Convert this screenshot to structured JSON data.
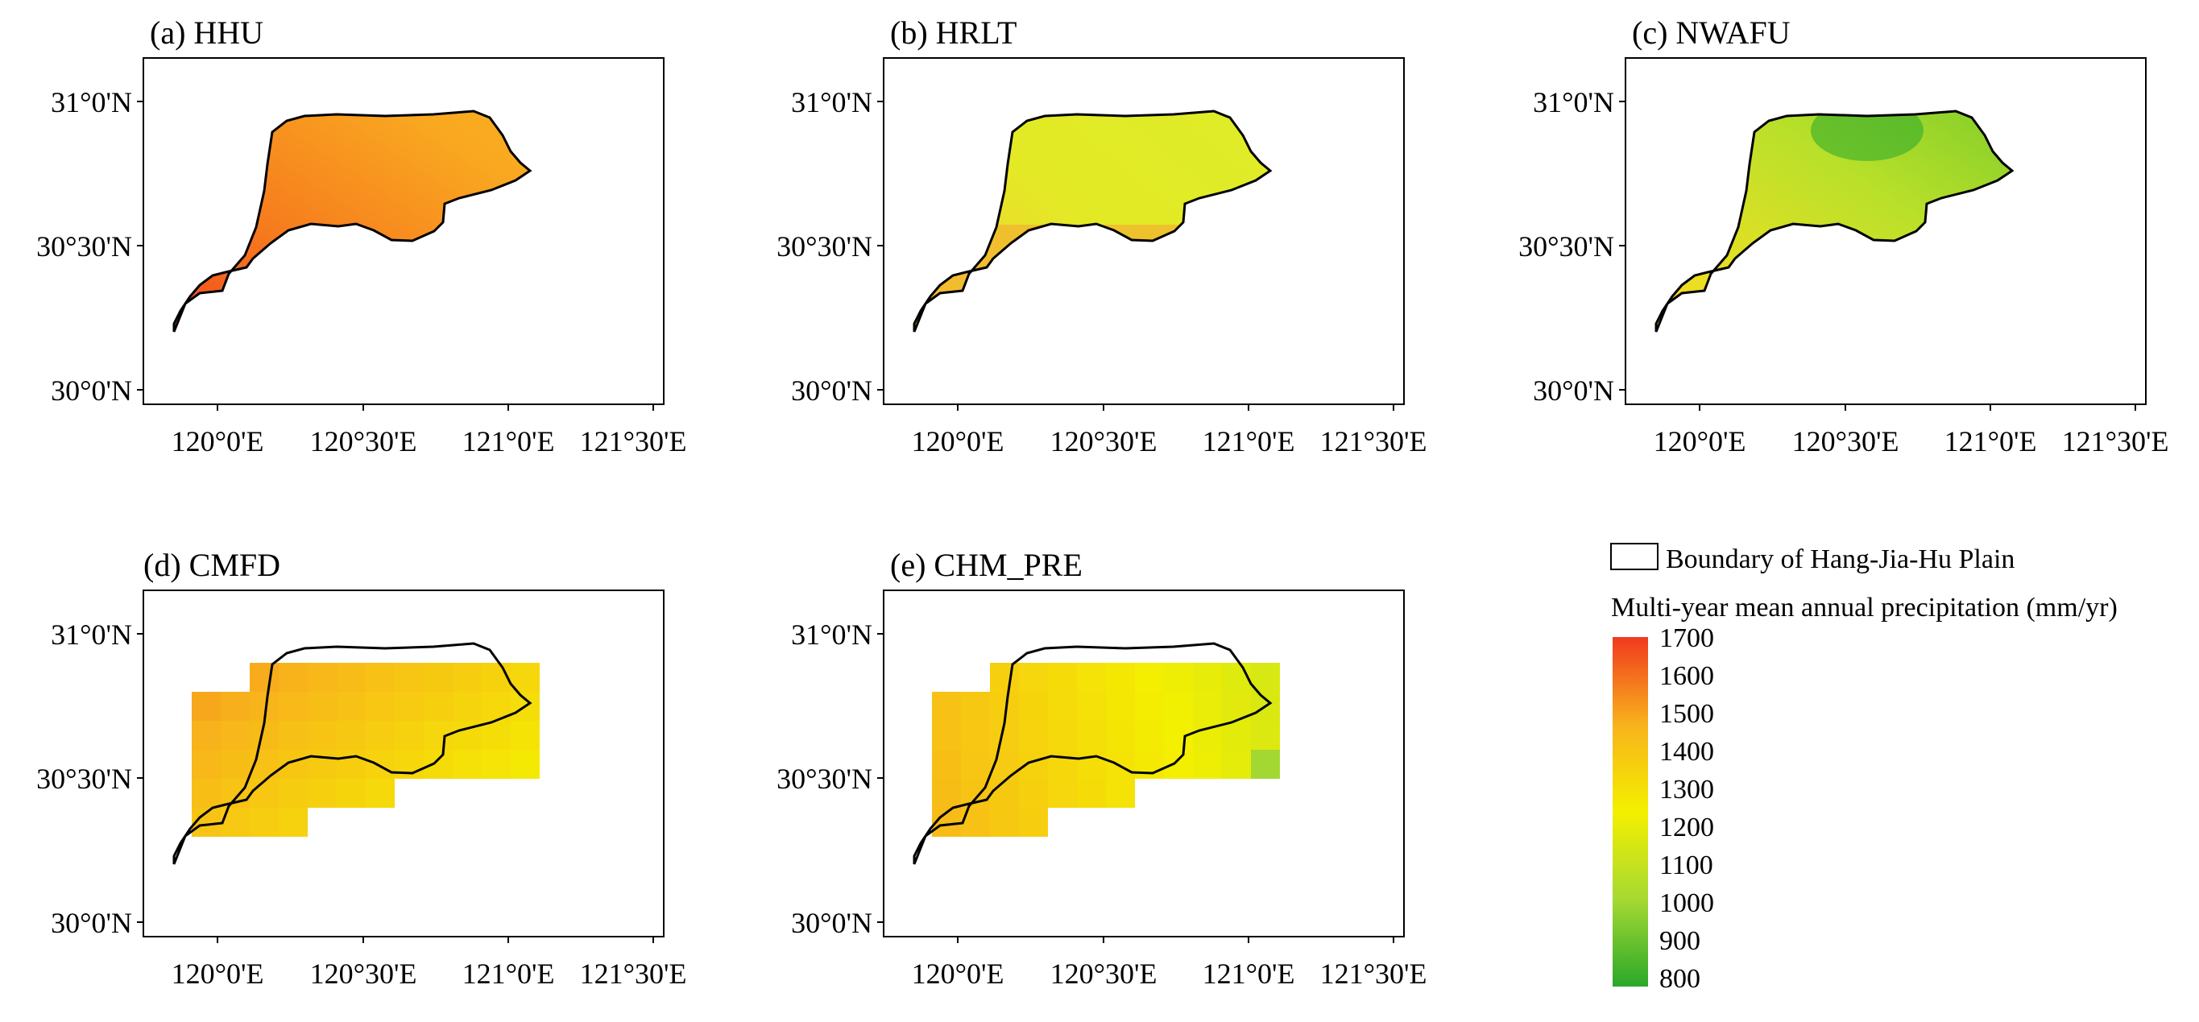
{
  "panels": [
    {
      "id": "a",
      "title": "(a) HHU",
      "mode": "smooth",
      "style": "hhu"
    },
    {
      "id": "b",
      "title": "(b) HRLT",
      "mode": "smooth",
      "style": "hrlt"
    },
    {
      "id": "c",
      "title": "(c) NWAFU",
      "mode": "smooth",
      "style": "nwafu"
    },
    {
      "id": "d",
      "title": "(d) CMFD",
      "mode": "grid",
      "style": "cmfd"
    },
    {
      "id": "e",
      "title": "(e) CHM_PRE",
      "mode": "grid",
      "style": "chm"
    }
  ],
  "axes": {
    "lat_ticks": [
      "31°0'N",
      "30°30'N",
      "30°0'N"
    ],
    "lon_ticks": [
      "120°0'E",
      "120°30'E",
      "121°0'E",
      "121°30'E"
    ]
  },
  "legend": {
    "boundary_label": "Boundary of Hang-Jia-Hu Plain",
    "colorbar_title": "Multi-year mean annual precipitation (mm/yr)",
    "tick_labels": [
      "1700",
      "1600",
      "1500",
      "1400",
      "1300",
      "1200",
      "1100",
      "1000",
      "900",
      "800"
    ],
    "colors": [
      "#2aa82a",
      "#a6d932",
      "#f4f000",
      "#f8b21c",
      "#f03a1e"
    ],
    "min": 800,
    "max": 1700
  }
}
